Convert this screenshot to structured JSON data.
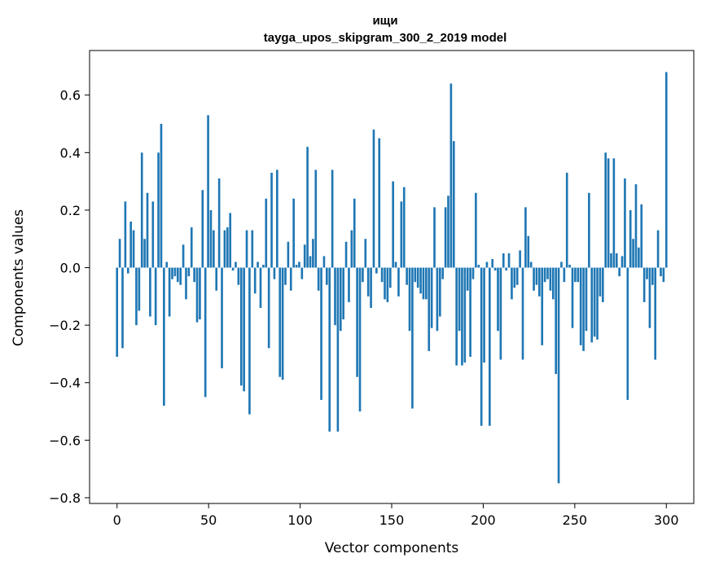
{
  "chart_data": {
    "type": "bar",
    "title": "ищи",
    "subtitle": "tayga_upos_skipgram_300_2_2019 model",
    "xlabel": "Vector components",
    "ylabel": "Components values",
    "xlim": [
      -15,
      315
    ],
    "ylim": [
      -0.82,
      0.755
    ],
    "xticks": [
      0,
      50,
      100,
      150,
      200,
      250,
      300
    ],
    "xtick_labels": [
      "0",
      "50",
      "100",
      "150",
      "200",
      "250",
      "300"
    ],
    "yticks": [
      -0.8,
      -0.6,
      -0.4,
      -0.2,
      0.0,
      0.2,
      0.4,
      0.6
    ],
    "ytick_labels": [
      "−0.8",
      "−0.6",
      "−0.4",
      "−0.2",
      "0.0",
      "0.2",
      "0.4",
      "0.6"
    ],
    "grid": false,
    "bar_color": "#1f77b4",
    "values": [
      -0.31,
      0.1,
      -0.28,
      0.23,
      -0.02,
      0.16,
      0.13,
      -0.2,
      -0.15,
      0.4,
      0.1,
      0.26,
      -0.17,
      0.23,
      -0.2,
      0.4,
      0.5,
      -0.48,
      0.02,
      -0.17,
      -0.04,
      -0.03,
      -0.05,
      -0.06,
      0.08,
      -0.11,
      -0.03,
      0.14,
      -0.05,
      -0.19,
      -0.18,
      0.27,
      -0.45,
      0.53,
      0.2,
      0.13,
      -0.08,
      0.31,
      -0.35,
      0.13,
      0.14,
      0.19,
      -0.01,
      0.02,
      -0.06,
      -0.41,
      -0.43,
      0.13,
      -0.51,
      0.13,
      -0.09,
      0.02,
      -0.14,
      0.01,
      0.24,
      -0.28,
      0.33,
      -0.04,
      0.34,
      -0.38,
      -0.39,
      -0.06,
      0.09,
      -0.08,
      0.24,
      0.01,
      0.02,
      -0.04,
      0.08,
      0.42,
      0.04,
      0.1,
      0.34,
      -0.08,
      -0.46,
      0.04,
      -0.06,
      -0.57,
      0.34,
      -0.2,
      -0.57,
      -0.22,
      -0.18,
      0.09,
      -0.12,
      0.13,
      0.24,
      -0.38,
      -0.5,
      -0.05,
      0.1,
      -0.1,
      -0.14,
      0.48,
      -0.02,
      0.45,
      -0.05,
      -0.11,
      -0.12,
      -0.07,
      0.3,
      0.02,
      -0.1,
      0.23,
      0.28,
      -0.06,
      -0.22,
      -0.49,
      -0.05,
      -0.07,
      -0.09,
      -0.11,
      -0.11,
      -0.29,
      -0.21,
      0.21,
      -0.22,
      -0.17,
      -0.04,
      0.21,
      0.25,
      0.64,
      0.44,
      -0.34,
      -0.22,
      -0.34,
      -0.33,
      -0.08,
      -0.31,
      -0.04,
      0.26,
      0.01,
      -0.55,
      -0.33,
      0.02,
      -0.55,
      0.03,
      -0.01,
      -0.22,
      -0.32,
      0.05,
      -0.01,
      0.05,
      -0.11,
      -0.07,
      -0.06,
      0.06,
      -0.32,
      0.21,
      0.11,
      0.02,
      -0.08,
      -0.06,
      -0.1,
      -0.27,
      -0.05,
      -0.04,
      -0.08,
      -0.11,
      -0.37,
      -0.75,
      0.02,
      -0.05,
      0.33,
      0.01,
      -0.21,
      -0.05,
      -0.05,
      -0.27,
      -0.29,
      -0.22,
      0.26,
      -0.26,
      -0.24,
      -0.25,
      -0.1,
      -0.12,
      0.4,
      0.38,
      0.05,
      0.38,
      0.05,
      -0.03,
      0.04,
      0.31,
      -0.46,
      0.2,
      0.1,
      0.29,
      0.07,
      0.22,
      -0.12,
      -0.04,
      -0.21,
      -0.06,
      -0.32,
      0.13,
      -0.03,
      -0.05,
      0.68
    ]
  }
}
